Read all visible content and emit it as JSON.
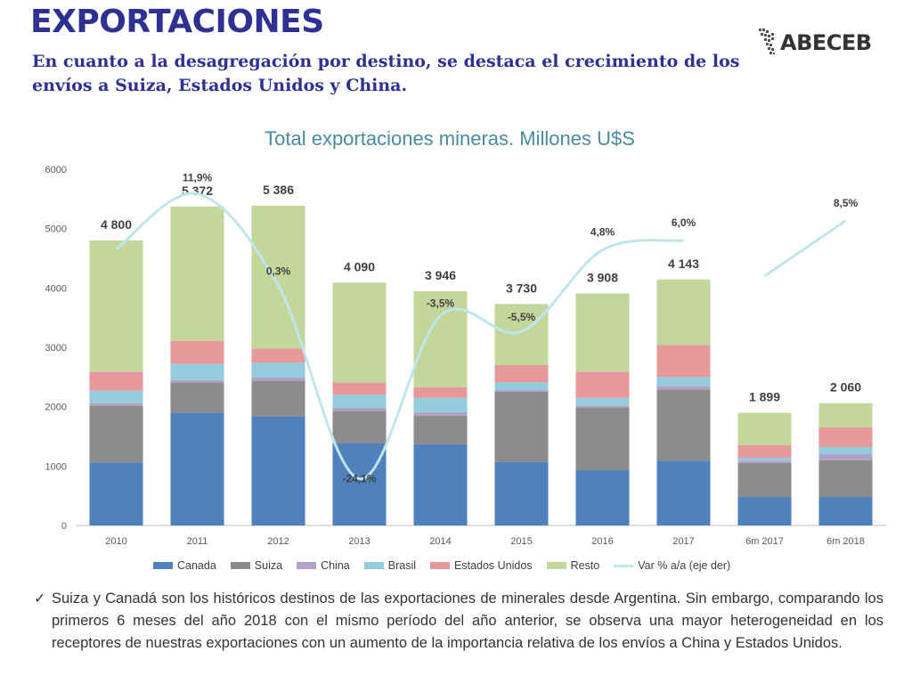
{
  "header": {
    "title": "EXPORTACIONES",
    "subtitle": "En cuanto a la desagregación por destino, se destaca el crecimiento de los envíos a Suiza, Estados Unidos y China."
  },
  "brand": {
    "logo_text": "ABECEB"
  },
  "note": {
    "check_icon": "✓",
    "text": "Suiza y Canadá son los históricos destinos de las exportaciones de minerales desde Argentina. Sin embargo, comparando los primeros 6 meses del año 2018 con el mismo período del año anterior, se observa una mayor heterogeneidad en los receptores de nuestras exportaciones con un aumento de la importancia relativa de los envíos a China y Estados Unidos."
  },
  "chart_data": {
    "type": "bar",
    "stacked": true,
    "title": "Total exportaciones mineras. Millones U$S",
    "xlabel": "",
    "ylabel": "",
    "ylim": [
      0,
      6000
    ],
    "yticks": [
      0,
      1000,
      2000,
      3000,
      4000,
      5000,
      6000
    ],
    "grid": false,
    "legend_position": "bottom",
    "categories": [
      "2010",
      "2011",
      "2012",
      "2013",
      "2014",
      "2015",
      "2016",
      "2017",
      "6m 2017",
      "6m 2018"
    ],
    "series": [
      {
        "name": "Canada",
        "color": "#4f81bd",
        "values": [
          1060,
          1900,
          1840,
          1390,
          1370,
          1070,
          930,
          1090,
          480,
          480
        ]
      },
      {
        "name": "Suiza",
        "color": "#8c8c8c",
        "values": [
          960,
          510,
          600,
          540,
          480,
          1180,
          1060,
          1200,
          570,
          620
        ]
      },
      {
        "name": "China",
        "color": "#b3a2c7",
        "values": [
          40,
          40,
          50,
          50,
          60,
          30,
          30,
          60,
          40,
          100
        ]
      },
      {
        "name": "Brasil",
        "color": "#93cddd",
        "values": [
          210,
          270,
          250,
          220,
          240,
          130,
          130,
          150,
          50,
          120
        ]
      },
      {
        "name": "Estados Unidos",
        "color": "#e6989a",
        "values": [
          320,
          390,
          240,
          210,
          180,
          290,
          440,
          540,
          210,
          330
        ]
      },
      {
        "name": "Resto",
        "color": "#c4d79b",
        "values": [
          2210,
          2262,
          2406,
          1680,
          1616,
          1030,
          1318,
          1103,
          549,
          410
        ]
      }
    ],
    "totals": [
      4800,
      5372,
      5386,
      4090,
      3946,
      3730,
      3908,
      4143,
      1899,
      2060
    ],
    "total_labels": [
      "4 800",
      "5 372",
      "5 386",
      "4 090",
      "3 946",
      "3 730",
      "3 908",
      "4 143",
      "1 899",
      "2 060"
    ],
    "var_series": {
      "name": "Var % a/a (eje der)",
      "color": "#bfe6ec",
      "segment_1": {
        "categories": [
          "2010",
          "2011",
          "2012",
          "2013",
          "2014",
          "2015",
          "2016",
          "2017"
        ],
        "values": [
          null,
          11.9,
          0.3,
          -24.1,
          -3.5,
          -5.5,
          4.8,
          6.0
        ]
      },
      "segment_2": {
        "categories": [
          "6m 2017",
          "6m 2018"
        ],
        "values": [
          null,
          8.5
        ]
      },
      "labels": [
        {
          "category": "2011",
          "text": "11,9%"
        },
        {
          "category": "2012",
          "text": "0,3%"
        },
        {
          "category": "2013",
          "text": "-24,1%"
        },
        {
          "category": "2014",
          "text": "-3,5%"
        },
        {
          "category": "2015",
          "text": "-5,5%"
        },
        {
          "category": "2016",
          "text": "4,8%"
        },
        {
          "category": "2017",
          "text": "6,0%"
        },
        {
          "category": "6m 2018",
          "text": "8,5%"
        }
      ]
    }
  }
}
